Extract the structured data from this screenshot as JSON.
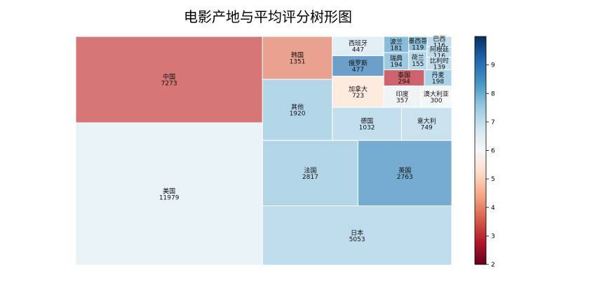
{
  "chart_data": {
    "type": "treemap",
    "title": "电影产地与平均评分树形图",
    "colorbar": {
      "min": 2,
      "max": 10,
      "ticks": [
        2,
        3,
        4,
        5,
        6,
        7,
        8,
        9
      ],
      "colormap": "RdBu"
    },
    "items": [
      {
        "name": "美国",
        "count": 11979,
        "score": 6.5
      },
      {
        "name": "中国",
        "count": 7273,
        "score": 3.2
      },
      {
        "name": "日本",
        "count": 5053,
        "score": 7.4
      },
      {
        "name": "法国",
        "count": 2817,
        "score": 7.6
      },
      {
        "name": "英国",
        "count": 2763,
        "score": 8.6
      },
      {
        "name": "其他",
        "count": 1920,
        "score": 7.6
      },
      {
        "name": "韩国",
        "count": 1351,
        "score": 3.9
      },
      {
        "name": "德国",
        "count": 1032,
        "score": 7.3
      },
      {
        "name": "意大利",
        "count": 749,
        "score": 7.2
      },
      {
        "name": "加拿大",
        "count": 723,
        "score": 5.4
      },
      {
        "name": "俄罗斯",
        "count": 477,
        "score": 8.9
      },
      {
        "name": "西班牙",
        "count": 447,
        "score": 6.7
      },
      {
        "name": "澳大利亚",
        "count": 300,
        "score": 6.2
      },
      {
        "name": "泰国",
        "count": 294,
        "score": 2.9
      },
      {
        "name": "印度",
        "count": 357,
        "score": 6.3
      },
      {
        "name": "丹麦",
        "count": 198,
        "score": 7.7
      },
      {
        "name": "瑞典",
        "count": 194,
        "score": 7.9
      },
      {
        "name": "波兰",
        "count": 181,
        "score": 8.2
      },
      {
        "name": "荷兰",
        "count": 155,
        "score": 7.5
      },
      {
        "name": "比利时",
        "count": 139,
        "score": 7.3
      },
      {
        "name": "墨西哥",
        "count": 119,
        "score": 8.1
      },
      {
        "name": "巴西",
        "count": 116,
        "score": 7.4
      },
      {
        "name": "阿根廷",
        "count": 116,
        "score": 7.4
      }
    ]
  }
}
